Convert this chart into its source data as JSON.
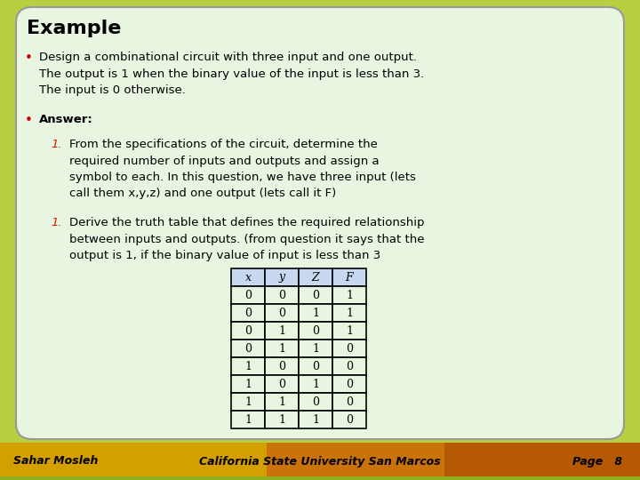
{
  "title": "Example",
  "background_color": "#e8f5e0",
  "slide_bg": "#b8d040",
  "table_header_color": "#c8d8f0",
  "bullet1_text": "Design a combinational circuit with three input and one output.\nThe output is 1 when the binary value of the input is less than 3.\nThe input is 0 otherwise.",
  "bullet2_text": "Answer:",
  "item1_num": "1.",
  "item1_text": "From the specifications of the circuit, determine the\nrequired number of inputs and outputs and assign a\nsymbol to each. In this question, we have three input (lets\ncall them x,y,z) and one output (lets call it F)",
  "item2_num": "1.",
  "item2_text": "Derive the truth table that defines the required relationship\nbetween inputs and outputs. (from question it says that the\noutput is 1, if the binary value of input is less than 3",
  "table_headers": [
    "x",
    "y",
    "Z",
    "F"
  ],
  "table_data": [
    [
      "0",
      "0",
      "0",
      "1"
    ],
    [
      "0",
      "0",
      "1",
      "1"
    ],
    [
      "0",
      "1",
      "0",
      "1"
    ],
    [
      "0",
      "1",
      "1",
      "0"
    ],
    [
      "1",
      "0",
      "0",
      "0"
    ],
    [
      "1",
      "0",
      "1",
      "0"
    ],
    [
      "1",
      "1",
      "0",
      "0"
    ],
    [
      "1",
      "1",
      "1",
      "0"
    ]
  ],
  "footer_left": "Sahar Mosleh",
  "footer_center": "California State University San Marcos",
  "footer_right": "Page   8",
  "title_color": "#000000",
  "bullet_color": "#cc0000",
  "number_color": "#cc2200",
  "text_color": "#000000",
  "footer_bg": "#d4a000",
  "title_fontsize": 16,
  "body_fontsize": 9.5,
  "table_fontsize": 9
}
